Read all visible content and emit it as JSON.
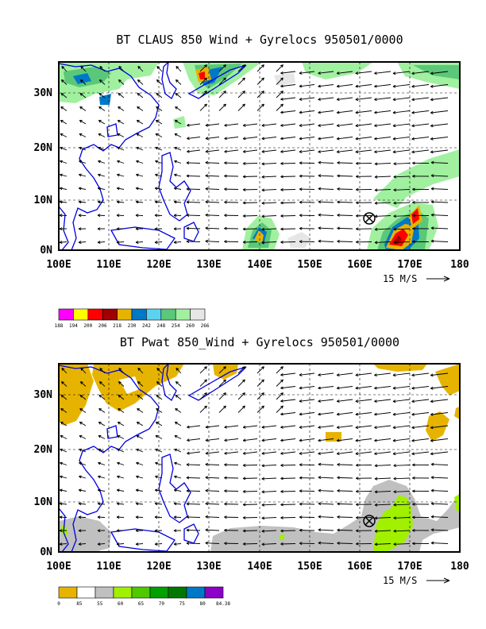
{
  "top_panel": {
    "title": "BT CLAUS 850 Wind + Gyrelocs 950501/0000",
    "x_ticks": [
      "100E",
      "110E",
      "120E",
      "130E",
      "140E",
      "150E",
      "160E",
      "170E",
      "180"
    ],
    "y_ticks": [
      "0N",
      "10N",
      "20N",
      "30N"
    ],
    "scale_label": "15 M/S",
    "colorbar": {
      "labels": [
        "188",
        "194",
        "200",
        "206",
        "218",
        "230",
        "242",
        "248",
        "254",
        "260",
        "266"
      ],
      "colors": [
        "#ff00ff",
        "#ffff00",
        "#ff0000",
        "#a00000",
        "#e6b400",
        "#0078c8",
        "#5ad2f0",
        "#5ac878",
        "#a0f0a0",
        "#e6e6e6"
      ]
    }
  },
  "bottom_panel": {
    "title": "BT Pwat 850_Wind + Gyrelocs 950501/0000",
    "x_ticks": [
      "100E",
      "110E",
      "120E",
      "130E",
      "140E",
      "150E",
      "160E",
      "170E",
      "180"
    ],
    "y_ticks": [
      "0N",
      "10N",
      "20N",
      "30N"
    ],
    "scale_label": "15 M/S",
    "colorbar": {
      "labels": [
        "0",
        "85",
        "55",
        "60",
        "65",
        "70",
        "75",
        "80",
        "84.38"
      ],
      "colors": [
        "#e6b400",
        "#ffffff",
        "#c0c0c0",
        "#a0f000",
        "#50c800",
        "#00a000",
        "#007800",
        "#0078c8",
        "#8c00c8"
      ]
    }
  },
  "gyre_location": {
    "lon": 162,
    "lat": 7
  }
}
